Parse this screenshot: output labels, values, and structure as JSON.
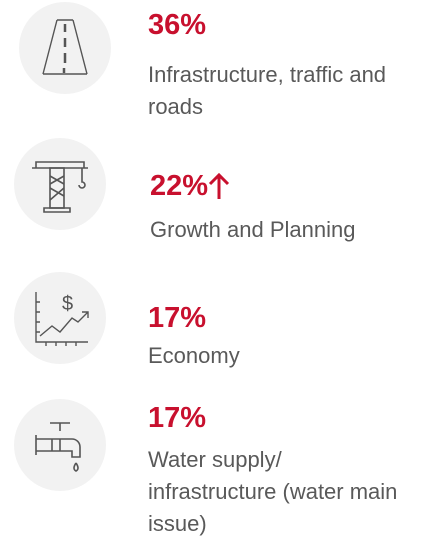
{
  "items": [
    {
      "value": "36%",
      "label": "Infrastructure, traffic and roads"
    },
    {
      "value": "22%",
      "label": "Growth and Planning"
    },
    {
      "value": "17%",
      "label": "Economy"
    },
    {
      "value": "17%",
      "label": "Water supply/ infrastructure (water main issue)"
    }
  ]
}
